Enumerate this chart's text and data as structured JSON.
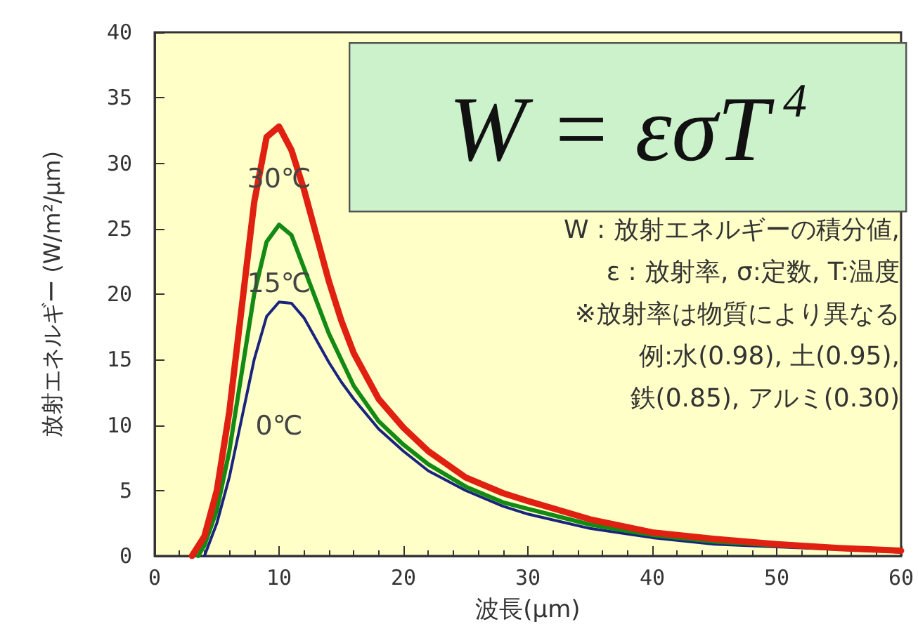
{
  "chart_data": {
    "type": "line",
    "xlabel": "波長(μm)",
    "ylabel": "放射エネルギー (W/m²/μm)",
    "xlim": [
      0,
      60
    ],
    "xticks": [
      0,
      10,
      20,
      30,
      40,
      50,
      60
    ],
    "ylim": [
      0,
      40
    ],
    "yticks": [
      0,
      5,
      10,
      15,
      20,
      25,
      30,
      35,
      40
    ],
    "grid": false,
    "legend": false,
    "marker": "none",
    "line_style": "solid",
    "annotations": [
      "W = εσT$^{4}$",
      "W : 放射エネルギーの積分値,",
      "ε : 放射率, σ:定数, T:温度",
      "※放射率は物質により異なる",
      "例:水(0.98), 土(0.95),",
      "鉄(0.85), アルミ(0.30)"
    ],
    "series": [
      {
        "name": "0℃",
        "color": "#1a237e",
        "x": [
          4,
          5,
          6,
          7,
          8,
          9,
          10,
          11,
          12,
          13,
          14,
          15,
          16,
          18,
          20,
          22,
          25,
          28,
          30,
          35,
          40,
          45,
          50,
          55,
          60
        ],
        "values": [
          0,
          2.5,
          6,
          10.5,
          15,
          18.3,
          19.4,
          19.3,
          18.2,
          16.5,
          14.8,
          13.3,
          12,
          9.7,
          8,
          6.5,
          5,
          3.8,
          3.2,
          2.1,
          1.4,
          0.9,
          0.7,
          0.5,
          0.3
        ]
      },
      {
        "name": "15℃",
        "color": "#138a13",
        "x": [
          3.5,
          4,
          5,
          6,
          7,
          8,
          9,
          10,
          11,
          12,
          13,
          14,
          15,
          16,
          18,
          20,
          22,
          25,
          28,
          30,
          35,
          40,
          45,
          50,
          55,
          60
        ],
        "values": [
          0,
          0.8,
          3.5,
          8,
          14,
          20,
          24,
          25.3,
          24.5,
          22,
          19.5,
          17,
          15,
          13,
          10.3,
          8.5,
          7,
          5.3,
          4.1,
          3.6,
          2.4,
          1.6,
          1.1,
          0.8,
          0.6,
          0.4
        ]
      },
      {
        "name": "30℃",
        "color": "#e02010",
        "x": [
          3,
          4,
          5,
          6,
          7,
          8,
          9,
          10,
          11,
          12,
          13,
          14,
          15,
          16,
          18,
          20,
          22,
          25,
          28,
          30,
          35,
          40,
          45,
          50,
          55,
          60
        ],
        "values": [
          0,
          1.5,
          5,
          11,
          19,
          27,
          32,
          32.8,
          31,
          28,
          24.5,
          21,
          18,
          15.5,
          12,
          9.8,
          8,
          6,
          4.8,
          4.2,
          2.8,
          1.8,
          1.3,
          0.9,
          0.6,
          0.4
        ]
      }
    ]
  }
}
